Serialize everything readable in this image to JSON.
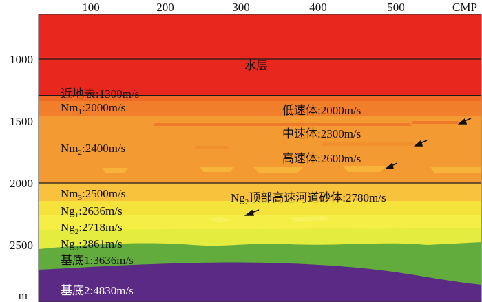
{
  "axes": {
    "x_ticks": [
      "100",
      "200",
      "300",
      "400",
      "500"
    ],
    "x_unit": "CMP",
    "y_ticks": [
      "1000",
      "1500",
      "2000",
      "2500"
    ],
    "y_unit": "m"
  },
  "layers": [
    {
      "id": "water",
      "label": "水层",
      "color": "#e8281f"
    },
    {
      "id": "near-surface",
      "label": "近地表:1300m/s",
      "color": "#ef6a24"
    },
    {
      "id": "nm1",
      "label_main": "Nm",
      "label_sub": "1",
      "label_rest": ":2000m/s",
      "color": "#f07e2a"
    },
    {
      "id": "nm2",
      "label_main": "Nm",
      "label_sub": "2",
      "label_rest": ":2400m/s",
      "color": "#f39a32"
    },
    {
      "id": "nm3",
      "label_main": "Nm",
      "label_sub": "3",
      "label_rest": ":2500m/s",
      "color": "#f8c23c"
    },
    {
      "id": "ng1",
      "label_main": "Ng",
      "label_sub": "1",
      "label_rest": ":2636m/s",
      "color": "#f5e23a"
    },
    {
      "id": "ng2",
      "label_main": "Ng",
      "label_sub": "2",
      "label_rest": ":2718m/s",
      "color": "#f4ee45"
    },
    {
      "id": "ng3",
      "label_main": "Ng",
      "label_sub": "3",
      "label_rest": ":2861m/s",
      "color": "#e3ec3f"
    },
    {
      "id": "basement1",
      "label": "基底1:3636m/s",
      "color": "#62ab3d"
    },
    {
      "id": "basement2",
      "label": "基底2:4830m/s",
      "color": "#5a2a84"
    }
  ],
  "annotations": {
    "low_velocity": "低速体:2000m/s",
    "mid_velocity": "中速体:2300m/s",
    "high_velocity": "高速体:2600m/s",
    "channel": {
      "main": "Ng",
      "sub": "2",
      "rest": "顶部高速河道砂体:2780m/s"
    }
  },
  "colors": {
    "low_body": "#f07a2b",
    "mid_body": "#f2902e",
    "high_body": "#f8b43a",
    "channel_body": "#f8f25a",
    "boundary": "#1a1a1a"
  }
}
